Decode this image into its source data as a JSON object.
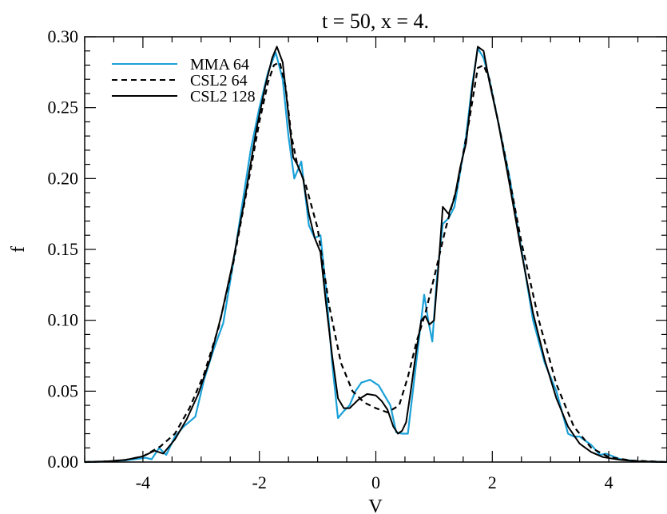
{
  "chart_data": {
    "type": "line",
    "title": "t = 50, x = 4.",
    "xlabel": "V",
    "ylabel": "f",
    "xlim": [
      -5,
      5
    ],
    "ylim": [
      0,
      0.3
    ],
    "x_ticks": [
      -4,
      -2,
      0,
      2,
      4
    ],
    "x_tick_labels": [
      "-4",
      "-2",
      "0",
      "2",
      "4"
    ],
    "y_ticks": [
      0,
      0.05,
      0.1,
      0.15,
      0.2,
      0.25,
      0.3
    ],
    "y_tick_labels": [
      "0.00",
      "0.05",
      "0.10",
      "0.15",
      "0.20",
      "0.25",
      "0.30"
    ],
    "grid": false,
    "legend_position": "top-left",
    "series": [
      {
        "name": "MMA 64",
        "color": "#1ba1d8",
        "dash": "solid",
        "points": [
          [
            -5.0,
            0.0
          ],
          [
            -4.6,
            0.0004
          ],
          [
            -4.3,
            0.0012
          ],
          [
            -4.15,
            0.002
          ],
          [
            -3.95,
            0.003
          ],
          [
            -3.85,
            0.002
          ],
          [
            -3.72,
            0.01
          ],
          [
            -3.6,
            0.005
          ],
          [
            -3.45,
            0.018
          ],
          [
            -3.3,
            0.025
          ],
          [
            -3.1,
            0.032
          ],
          [
            -2.95,
            0.058
          ],
          [
            -2.78,
            0.08
          ],
          [
            -2.62,
            0.098
          ],
          [
            -2.45,
            0.14
          ],
          [
            -2.3,
            0.18
          ],
          [
            -2.15,
            0.22
          ],
          [
            -2.0,
            0.25
          ],
          [
            -1.85,
            0.275
          ],
          [
            -1.72,
            0.289
          ],
          [
            -1.6,
            0.27
          ],
          [
            -1.5,
            0.23
          ],
          [
            -1.4,
            0.2
          ],
          [
            -1.28,
            0.212
          ],
          [
            -1.15,
            0.167
          ],
          [
            -1.05,
            0.158
          ],
          [
            -0.95,
            0.16
          ],
          [
            -0.85,
            0.12
          ],
          [
            -0.75,
            0.07
          ],
          [
            -0.65,
            0.031
          ],
          [
            -0.55,
            0.036
          ],
          [
            -0.45,
            0.04
          ],
          [
            -0.35,
            0.05
          ],
          [
            -0.25,
            0.056
          ],
          [
            -0.1,
            0.058
          ],
          [
            0.05,
            0.054
          ],
          [
            0.15,
            0.047
          ],
          [
            0.25,
            0.04
          ],
          [
            0.35,
            0.021
          ],
          [
            0.45,
            0.02
          ],
          [
            0.55,
            0.02
          ],
          [
            0.65,
            0.055
          ],
          [
            0.75,
            0.09
          ],
          [
            0.83,
            0.118
          ],
          [
            0.9,
            0.1
          ],
          [
            0.97,
            0.085
          ],
          [
            1.05,
            0.13
          ],
          [
            1.15,
            0.168
          ],
          [
            1.25,
            0.172
          ],
          [
            1.35,
            0.18
          ],
          [
            1.45,
            0.205
          ],
          [
            1.55,
            0.23
          ],
          [
            1.65,
            0.265
          ],
          [
            1.75,
            0.292
          ],
          [
            1.85,
            0.285
          ],
          [
            1.95,
            0.27
          ],
          [
            2.1,
            0.24
          ],
          [
            2.3,
            0.2
          ],
          [
            2.5,
            0.15
          ],
          [
            2.7,
            0.1
          ],
          [
            2.9,
            0.07
          ],
          [
            3.1,
            0.05
          ],
          [
            3.3,
            0.02
          ],
          [
            3.4,
            0.018
          ],
          [
            3.5,
            0.018
          ],
          [
            3.7,
            0.012
          ],
          [
            3.85,
            0.005
          ],
          [
            3.95,
            0.006
          ],
          [
            4.2,
            0.002
          ],
          [
            4.5,
            0.0005
          ],
          [
            5.0,
            0.0
          ]
        ]
      },
      {
        "name": "CSL2 64",
        "color": "#000000",
        "dash": "dashed",
        "points": [
          [
            -5.0,
            0.0
          ],
          [
            -4.6,
            0.0005
          ],
          [
            -4.3,
            0.0015
          ],
          [
            -4.0,
            0.004
          ],
          [
            -3.7,
            0.011
          ],
          [
            -3.45,
            0.02
          ],
          [
            -3.2,
            0.038
          ],
          [
            -2.95,
            0.062
          ],
          [
            -2.7,
            0.095
          ],
          [
            -2.45,
            0.14
          ],
          [
            -2.2,
            0.195
          ],
          [
            -2.0,
            0.24
          ],
          [
            -1.85,
            0.268
          ],
          [
            -1.75,
            0.28
          ],
          [
            -1.65,
            0.282
          ],
          [
            -1.55,
            0.265
          ],
          [
            -1.45,
            0.23
          ],
          [
            -1.35,
            0.21
          ],
          [
            -1.2,
            0.195
          ],
          [
            -1.0,
            0.165
          ],
          [
            -0.8,
            0.11
          ],
          [
            -0.6,
            0.07
          ],
          [
            -0.4,
            0.05
          ],
          [
            -0.2,
            0.042
          ],
          [
            0.0,
            0.038
          ],
          [
            0.2,
            0.035
          ],
          [
            0.4,
            0.04
          ],
          [
            0.55,
            0.06
          ],
          [
            0.7,
            0.085
          ],
          [
            0.85,
            0.105
          ],
          [
            1.0,
            0.13
          ],
          [
            1.2,
            0.165
          ],
          [
            1.4,
            0.195
          ],
          [
            1.6,
            0.24
          ],
          [
            1.75,
            0.278
          ],
          [
            1.85,
            0.28
          ],
          [
            1.95,
            0.27
          ],
          [
            2.2,
            0.22
          ],
          [
            2.5,
            0.155
          ],
          [
            2.8,
            0.1
          ],
          [
            3.1,
            0.055
          ],
          [
            3.4,
            0.025
          ],
          [
            3.7,
            0.01
          ],
          [
            4.0,
            0.0035
          ],
          [
            4.4,
            0.001
          ],
          [
            5.0,
            0.0
          ]
        ]
      },
      {
        "name": "CSL2 128",
        "color": "#000000",
        "dash": "solid",
        "points": [
          [
            -5.0,
            0.0
          ],
          [
            -4.6,
            0.0005
          ],
          [
            -4.3,
            0.0015
          ],
          [
            -4.0,
            0.004
          ],
          [
            -3.8,
            0.008
          ],
          [
            -3.65,
            0.006
          ],
          [
            -3.45,
            0.016
          ],
          [
            -3.25,
            0.03
          ],
          [
            -3.05,
            0.048
          ],
          [
            -2.85,
            0.072
          ],
          [
            -2.65,
            0.104
          ],
          [
            -2.45,
            0.142
          ],
          [
            -2.25,
            0.186
          ],
          [
            -2.05,
            0.235
          ],
          [
            -1.9,
            0.265
          ],
          [
            -1.78,
            0.285
          ],
          [
            -1.7,
            0.293
          ],
          [
            -1.6,
            0.282
          ],
          [
            -1.5,
            0.245
          ],
          [
            -1.42,
            0.215
          ],
          [
            -1.35,
            0.21
          ],
          [
            -1.25,
            0.2
          ],
          [
            -1.15,
            0.175
          ],
          [
            -1.05,
            0.158
          ],
          [
            -0.95,
            0.148
          ],
          [
            -0.85,
            0.11
          ],
          [
            -0.75,
            0.075
          ],
          [
            -0.65,
            0.045
          ],
          [
            -0.55,
            0.038
          ],
          [
            -0.45,
            0.038
          ],
          [
            -0.3,
            0.044
          ],
          [
            -0.15,
            0.048
          ],
          [
            0.0,
            0.047
          ],
          [
            0.1,
            0.043
          ],
          [
            0.2,
            0.037
          ],
          [
            0.3,
            0.025
          ],
          [
            0.38,
            0.02
          ],
          [
            0.45,
            0.022
          ],
          [
            0.52,
            0.028
          ],
          [
            0.6,
            0.05
          ],
          [
            0.7,
            0.08
          ],
          [
            0.78,
            0.1
          ],
          [
            0.85,
            0.103
          ],
          [
            0.92,
            0.097
          ],
          [
            1.0,
            0.1
          ],
          [
            1.08,
            0.14
          ],
          [
            1.15,
            0.18
          ],
          [
            1.25,
            0.175
          ],
          [
            1.35,
            0.186
          ],
          [
            1.45,
            0.208
          ],
          [
            1.55,
            0.225
          ],
          [
            1.65,
            0.262
          ],
          [
            1.75,
            0.293
          ],
          [
            1.85,
            0.29
          ],
          [
            1.95,
            0.268
          ],
          [
            2.1,
            0.24
          ],
          [
            2.3,
            0.195
          ],
          [
            2.5,
            0.148
          ],
          [
            2.7,
            0.105
          ],
          [
            2.9,
            0.072
          ],
          [
            3.1,
            0.045
          ],
          [
            3.3,
            0.025
          ],
          [
            3.5,
            0.013
          ],
          [
            3.7,
            0.007
          ],
          [
            3.9,
            0.0035
          ],
          [
            4.2,
            0.0015
          ],
          [
            4.5,
            0.0005
          ],
          [
            5.0,
            0.0
          ]
        ]
      }
    ]
  }
}
